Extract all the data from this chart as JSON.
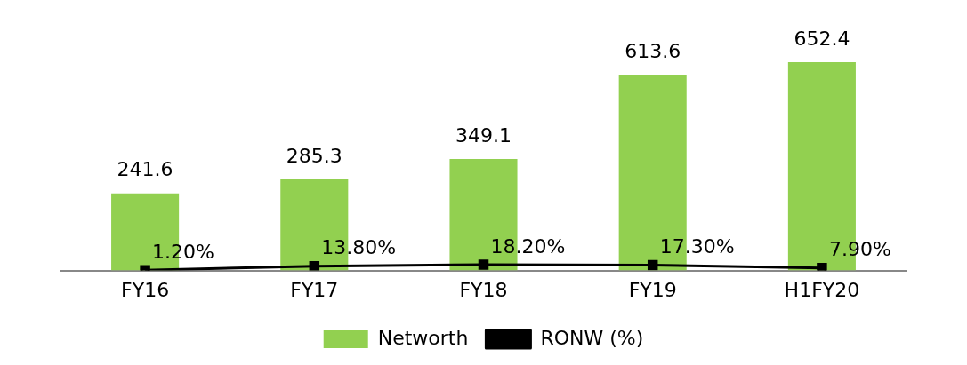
{
  "chart_data": {
    "type": "bar",
    "categories": [
      "FY16",
      "FY17",
      "FY18",
      "FY19",
      "H1FY20"
    ],
    "series": [
      {
        "name": "Networth",
        "color": "#92d050",
        "values": [
          241.6,
          285.3,
          349.1,
          613.6,
          652.4
        ]
      },
      {
        "name": "RONW (%)",
        "type": "line",
        "color": "#000000",
        "marker": "square",
        "values": [
          1.2,
          13.8,
          18.2,
          17.3,
          7.9
        ],
        "value_labels": [
          "1.20%",
          "13.80%",
          "18.20%",
          "17.30%",
          "7.90%"
        ]
      }
    ],
    "data_labels": true,
    "grid": false,
    "legend": "bottom"
  }
}
